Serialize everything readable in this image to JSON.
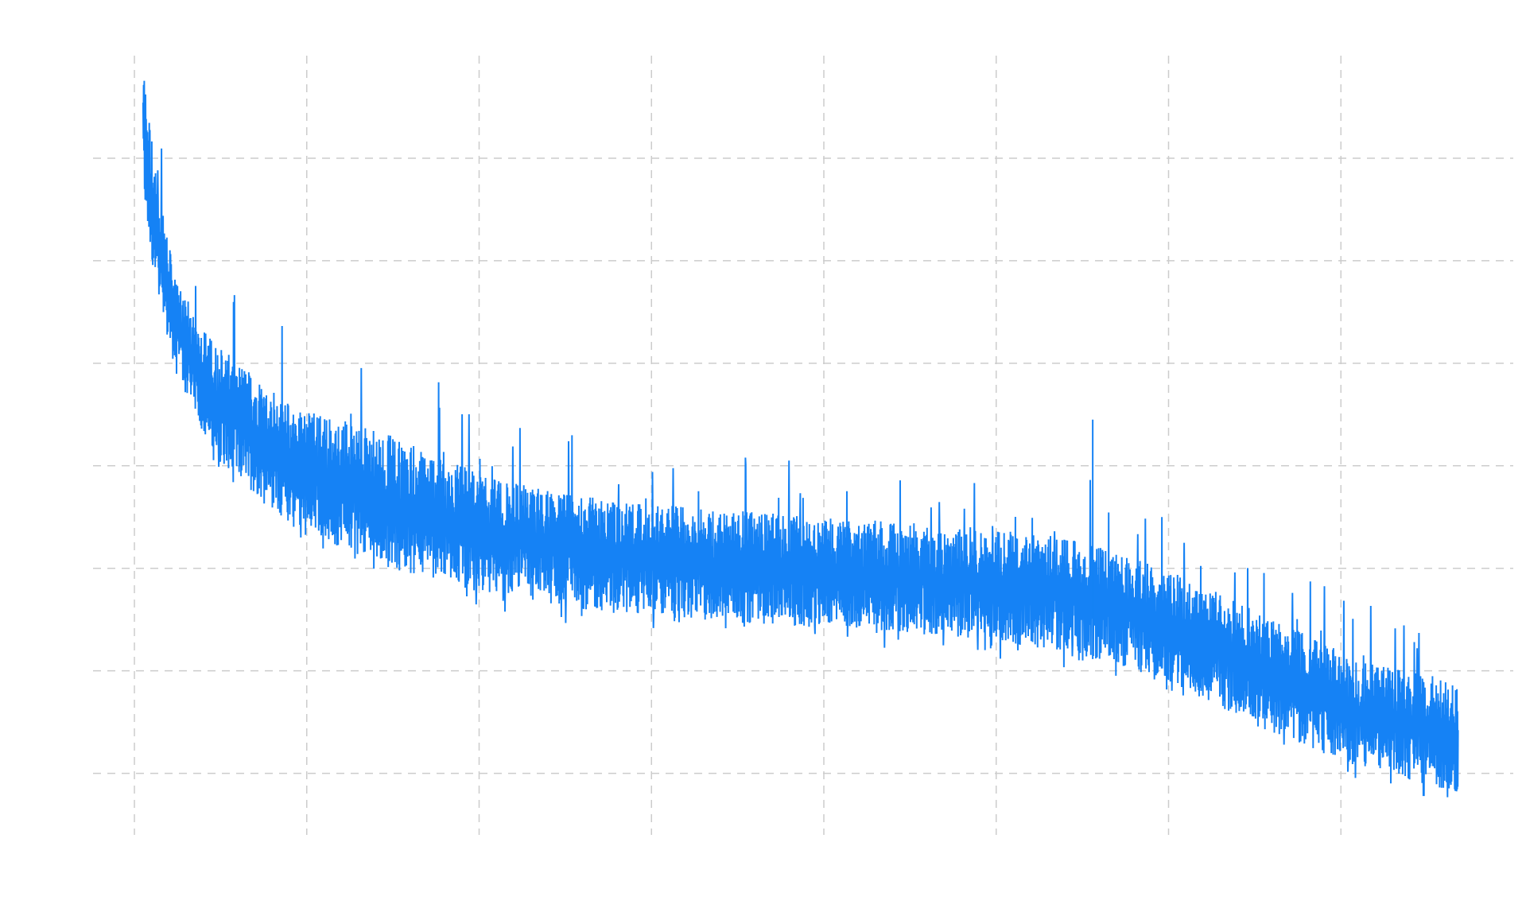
{
  "chart_data": {
    "type": "line",
    "title": "",
    "xlabel": "",
    "ylabel": "",
    "tick_labels_shown": false,
    "grid": true,
    "grid_style": "dashed",
    "xlim": [
      -0.24,
      8.0
    ],
    "ylim": [
      -0.6,
      7.0
    ],
    "x_gridlines": [
      0,
      1,
      2,
      3,
      4,
      5,
      6,
      7
    ],
    "y_gridlines": [
      0,
      1,
      2,
      3,
      4,
      5,
      6
    ],
    "series_color": "#1582F5",
    "grid_color": "#cccccc",
    "series": [
      {
        "style": "dense noisy line, decreasing",
        "x": [
          0.05,
          0.12,
          0.24,
          0.46,
          0.91,
          1.48,
          2.04,
          2.61,
          3.17,
          4.02,
          4.86,
          5.43,
          5.99,
          6.55,
          7.12,
          7.68
        ],
        "upper": [
          6.97,
          5.9,
          4.8,
          4.2,
          3.6,
          3.3,
          2.9,
          2.7,
          2.6,
          2.5,
          2.4,
          2.3,
          2.0,
          1.56,
          1.09,
          0.9
        ],
        "lower": [
          5.6,
          4.8,
          3.9,
          3.1,
          2.4,
          2.0,
          1.75,
          1.6,
          1.5,
          1.42,
          1.32,
          1.18,
          0.9,
          0.43,
          0.05,
          -0.19
        ],
        "max_spike": 3.45
      }
    ]
  }
}
